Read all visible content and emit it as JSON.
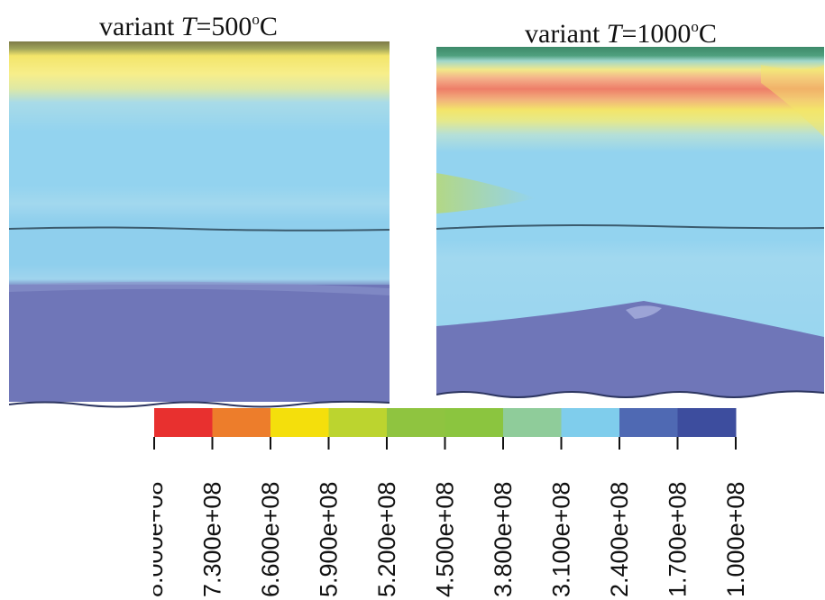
{
  "titles": {
    "left": {
      "prefix": "variant ",
      "var": "T",
      "eq": "=500",
      "sup": "o",
      "unit": "C"
    },
    "right": {
      "prefix": "variant ",
      "var": "T",
      "eq": "=1000",
      "sup": "o",
      "unit": "C"
    }
  },
  "colorbar": {
    "colors": [
      "#e8302f",
      "#ed7d2b",
      "#f4df0c",
      "#bcd42f",
      "#8fc440",
      "#8bc53f",
      "#8fcc9a",
      "#7fcdec",
      "#4f69b3",
      "#3d4d9e"
    ],
    "labels": [
      "8.000e+08",
      "7.300e+08",
      "6.600e+08",
      "5.900e+08",
      "5.200e+08",
      "4.500e+08",
      "3.800e+08",
      "3.100e+08",
      "2.400e+08",
      "1.700e+08",
      "1.000e+08"
    ]
  },
  "colors": {
    "field_blue": "#93d3ef",
    "field_dark": "#6f76b8",
    "field_yellow": "#f3e56a",
    "field_red": "#ee7e68",
    "boundary": "#3b5b6e"
  }
}
